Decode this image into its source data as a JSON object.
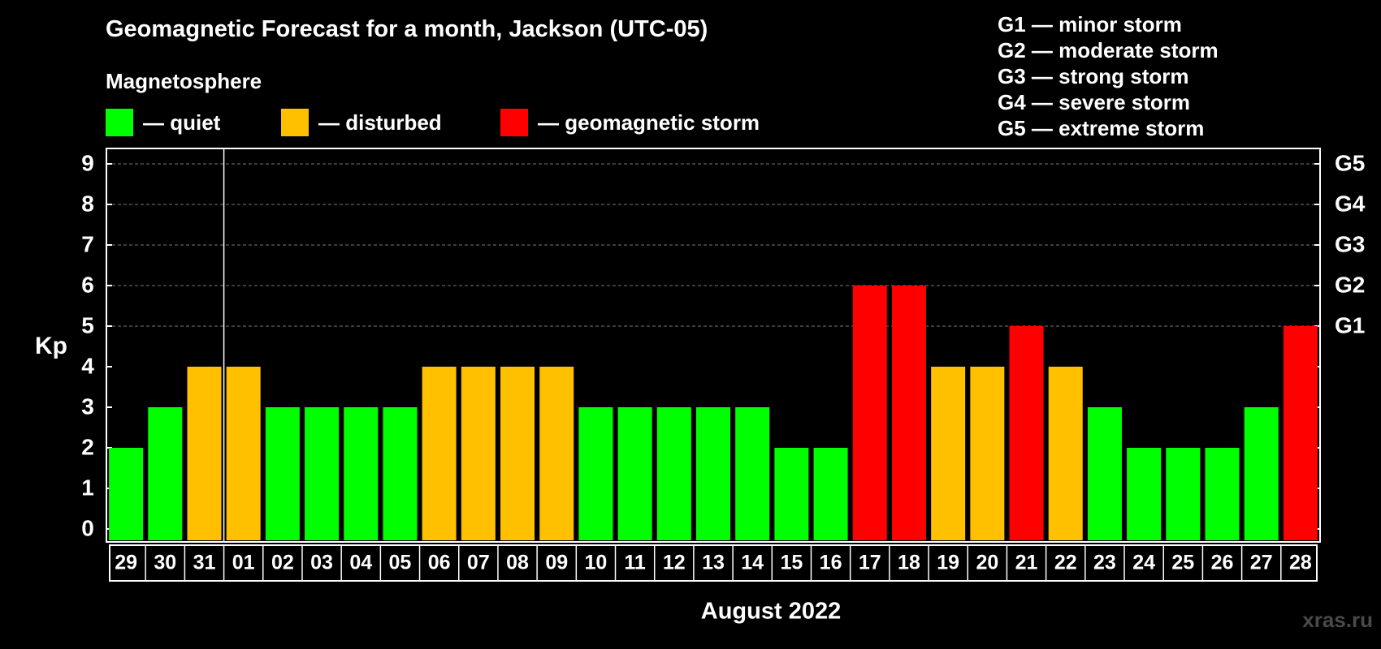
{
  "title": "Geomagnetic Forecast for a month, Jackson (UTC-05)",
  "legend": {
    "heading": "Magnetosphere",
    "items": [
      {
        "label": "— quiet",
        "color": "#00ff00"
      },
      {
        "label": "— disturbed",
        "color": "#ffc000"
      },
      {
        "label": "— geomagnetic storm",
        "color": "#ff0000"
      }
    ]
  },
  "storm_scale": [
    "G1 — minor storm",
    "G2 — moderate storm",
    "G3 — strong storm",
    "G4 — severe storm",
    "G5 — extreme storm"
  ],
  "watermark": "xras.ru",
  "chart_data": {
    "type": "bar",
    "ylabel": "Kp",
    "xlabel": "August 2022",
    "ylim": [
      0,
      9
    ],
    "yticks": [
      "0",
      "1",
      "2",
      "3",
      "4",
      "5",
      "6",
      "7",
      "8",
      "9"
    ],
    "right_axis_labels": [
      {
        "value": 5,
        "label": "G1"
      },
      {
        "value": 6,
        "label": "G2"
      },
      {
        "value": 7,
        "label": "G3"
      },
      {
        "value": 8,
        "label": "G4"
      },
      {
        "value": 9,
        "label": "G5"
      }
    ],
    "gridlines": [
      5,
      6,
      7,
      8,
      9
    ],
    "month_divider_after_index": 2,
    "categories": [
      "29",
      "30",
      "31",
      "01",
      "02",
      "03",
      "04",
      "05",
      "06",
      "07",
      "08",
      "09",
      "10",
      "11",
      "12",
      "13",
      "14",
      "15",
      "16",
      "17",
      "18",
      "19",
      "20",
      "21",
      "22",
      "23",
      "24",
      "25",
      "26",
      "27",
      "28"
    ],
    "values": [
      2,
      3,
      4,
      4,
      3,
      3,
      3,
      3,
      4,
      4,
      4,
      4,
      3,
      3,
      3,
      3,
      3,
      2,
      2,
      6,
      6,
      4,
      4,
      5,
      4,
      3,
      2,
      2,
      2,
      3,
      5
    ],
    "colors": {
      "quiet": "#00ff00",
      "disturbed": "#ffc000",
      "storm": "#ff0000"
    }
  }
}
